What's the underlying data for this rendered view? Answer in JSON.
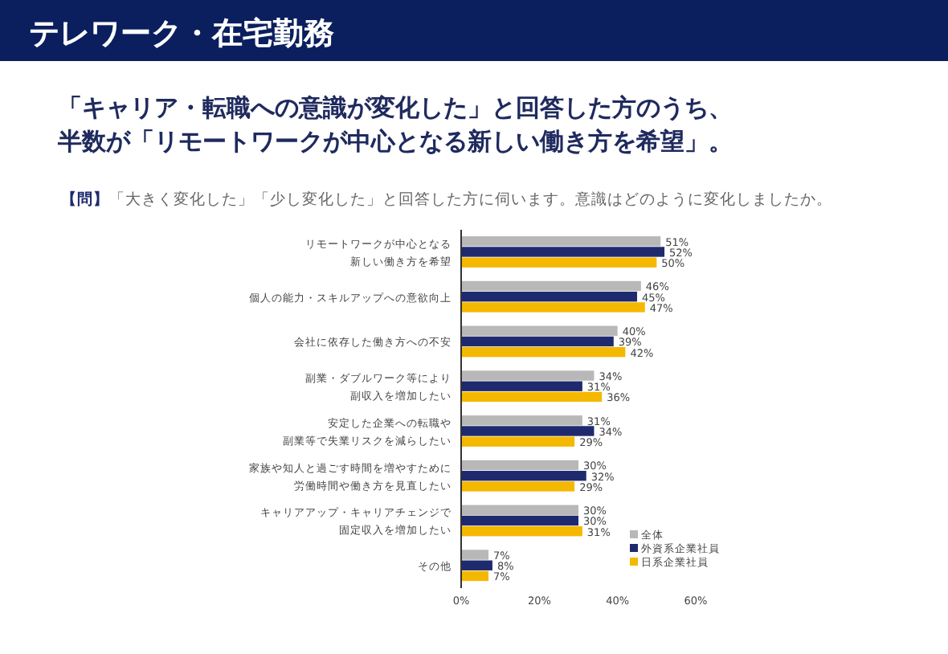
{
  "chart_data": {
    "type": "bar",
    "orientation": "horizontal",
    "title": "テレワーク・在宅勤務",
    "subtitle": "「キャリア・転職への意識が変化した」と回答した方のうち、半数が「リモートワークが中心となる新しい働き方を希望」。",
    "annotations": [
      "**【問】**「大きく変化した」「少し変化した」と回答した方に伺います。意識はどのように変化しましたか。"
    ],
    "categories": [
      "リモートワークが中心となる新しい働き方を希望",
      "個人の能力・スキルアップへの意欲向上",
      "会社に依存した働き方への不安",
      "副業・ダブルワーク等により副収入を増加したい",
      "安定した企業への転職や副業等で失業リスクを減らしたい",
      "家族や知人と過ごす時間を増やすために労働時間や働き方を見直したい",
      "キャリアアップ・キャリアチェンジで固定収入を増加したい",
      "その他"
    ],
    "series": [
      {
        "name": "全体",
        "color": "#b8b8b8",
        "values": [
          51,
          46,
          40,
          34,
          31,
          30,
          30,
          7
        ],
        "value_labels": [
          "51%",
          "46%",
          "40%",
          "34%",
          "31%",
          "30%",
          "30%",
          "7%"
        ]
      },
      {
        "name": "外資系企業社員",
        "color": "#1f2a6e",
        "values": [
          52,
          45,
          39,
          31,
          34,
          32,
          30,
          8
        ],
        "value_labels": [
          "52%",
          "45%",
          "39%",
          "31%",
          "34%",
          "32%",
          "30%",
          "8%"
        ]
      },
      {
        "name": "日系企業社員",
        "color": "#f5b800",
        "values": [
          50,
          47,
          42,
          36,
          29,
          29,
          31,
          7
        ],
        "value_labels": [
          "50%",
          "47%",
          "42%",
          "36%",
          "29%",
          "29%",
          "31%",
          "7%"
        ]
      }
    ],
    "xlim": [
      0,
      60
    ],
    "xticks": [
      {
        "value": 0,
        "label": "0%"
      },
      {
        "value": 20,
        "label": "20%"
      },
      {
        "value": 40,
        "label": "40%"
      },
      {
        "value": 60,
        "label": "60%"
      }
    ],
    "legend": "bottom right"
  }
}
